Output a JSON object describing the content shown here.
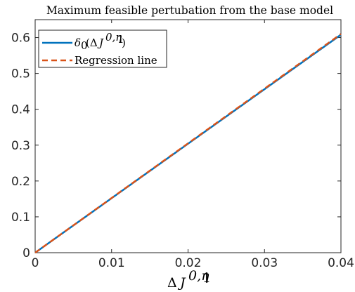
{
  "chart_data": {
    "type": "line",
    "title": "Maximum feasible pertubation from the base model",
    "xlabel": "ΔJ^{0,η1}",
    "ylabel": "",
    "xlim": [
      0,
      0.04
    ],
    "ylim": [
      0,
      0.65
    ],
    "xticks": [
      0,
      0.01,
      0.02,
      0.03,
      0.04
    ],
    "xtick_labels": [
      "0",
      "0.01",
      "0.02",
      "0.03",
      "0.04"
    ],
    "yticks": [
      0,
      0.1,
      0.2,
      0.3,
      0.4,
      0.5,
      0.6
    ],
    "ytick_labels": [
      "0",
      "0.1",
      "0.2",
      "0.3",
      "0.4",
      "0.5",
      "0.6"
    ],
    "grid": false,
    "legend_position": "top-left",
    "series": [
      {
        "name": "δ0(ΔJ^{0,η1})",
        "style": "solid",
        "color": "#0072BD",
        "x": [
          0,
          0.01,
          0.02,
          0.03,
          0.04
        ],
        "y": [
          0,
          0.152,
          0.304,
          0.456,
          0.608
        ]
      },
      {
        "name": "Regression line",
        "style": "dashed",
        "color": "#D95319",
        "x": [
          0,
          0.01,
          0.02,
          0.03,
          0.04
        ],
        "y": [
          0,
          0.1525,
          0.305,
          0.4575,
          0.61
        ]
      }
    ]
  }
}
